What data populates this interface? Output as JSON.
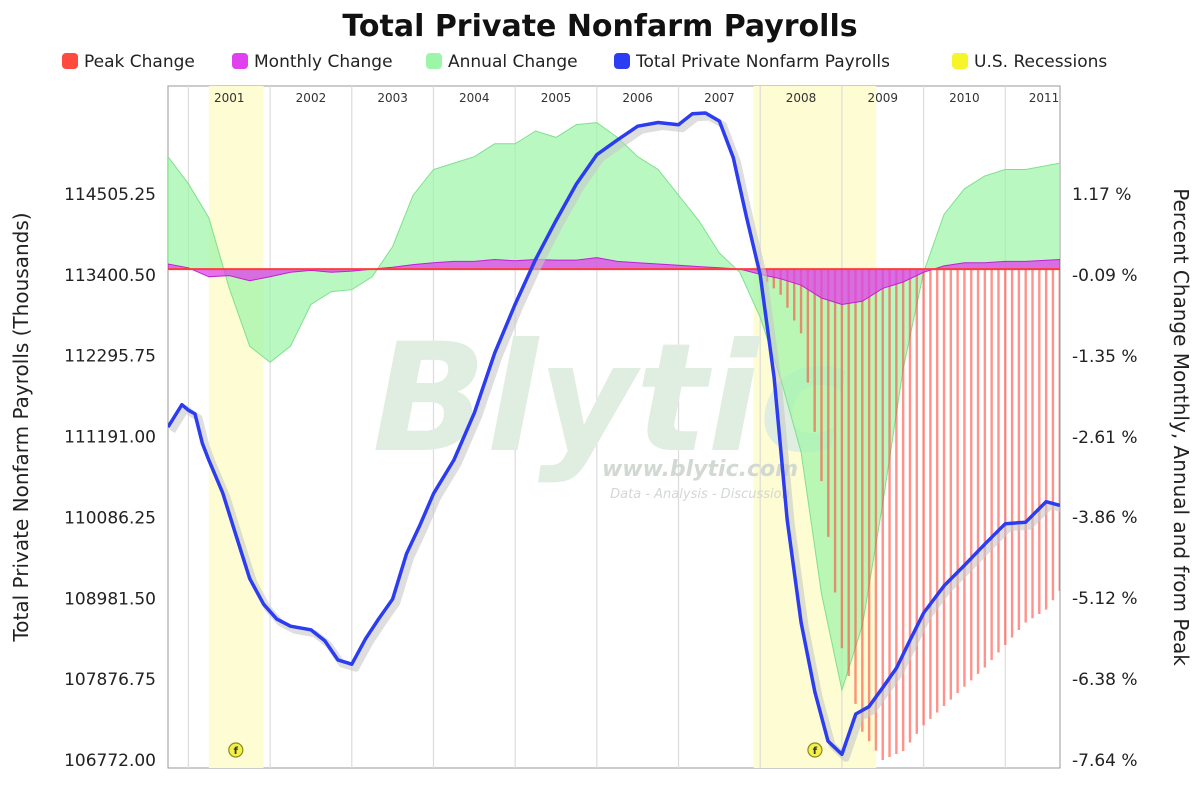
{
  "chart_data": {
    "type": "area",
    "title": "Total Private Nonfarm Payrolls",
    "legend": {
      "placement": "top",
      "entries": [
        {
          "name": "Peak Change",
          "color": "#ff4a3d"
        },
        {
          "name": "Monthly Change",
          "color": "#e040ee"
        },
        {
          "name": "Annual Change",
          "color": "#9cf5a8"
        },
        {
          "name": "Total Private Nonfarm Payrolls",
          "color": "#2c3cf0"
        },
        {
          "name": "U.S. Recessions",
          "color": "#f5f52a"
        }
      ]
    },
    "x_range": [
      2000.75,
      2011.67
    ],
    "year_labels": [
      "2001",
      "2002",
      "2003",
      "2004",
      "2005",
      "2006",
      "2007",
      "2008",
      "2009",
      "2010",
      "2011"
    ],
    "recessions": [
      [
        2001.25,
        2001.92
      ],
      [
        2007.92,
        2009.42
      ]
    ],
    "recession_markers": [
      2001.58,
      2008.67
    ],
    "marker_label": "f",
    "y_left": {
      "label": "Total Private Nonfarm Payrolls (Thousands)",
      "range": [
        106772.0,
        115610.0
      ],
      "ticks": [
        "114505.25",
        "113400.50",
        "112295.75",
        "111191.00",
        "110086.25",
        "108981.50",
        "107876.75",
        "106772.00"
      ],
      "tick_values": [
        114505.25,
        113400.5,
        112295.75,
        111191.0,
        110086.25,
        108981.5,
        107876.75,
        106772.0
      ]
    },
    "y_right": {
      "label": "Percent Change Monthly, Annual and from Peak",
      "range": [
        -7.64,
        2.43
      ],
      "ticks": [
        "1.17 %",
        "-0.09 %",
        "-1.35 %",
        "-2.61 %",
        "-3.86 %",
        "-5.12 %",
        "-6.38 %",
        "-7.64 %"
      ],
      "tick_values": [
        1.17,
        -0.09,
        -1.35,
        -2.61,
        -3.86,
        -5.12,
        -6.38,
        -7.64
      ]
    },
    "series": [
      {
        "name": "Total Private Nonfarm Payrolls",
        "axis": "left",
        "color": "#2c3cf0",
        "x": [
          2000.75,
          2000.92,
          2001.0,
          2001.08,
          2001.17,
          2001.25,
          2001.42,
          2001.58,
          2001.75,
          2001.92,
          2002.08,
          2002.25,
          2002.5,
          2002.67,
          2002.83,
          2003.0,
          2003.17,
          2003.33,
          2003.5,
          2003.67,
          2003.83,
          2004.0,
          2004.25,
          2004.5,
          2004.75,
          2005.0,
          2005.25,
          2005.5,
          2005.75,
          2006.0,
          2006.25,
          2006.5,
          2006.75,
          2007.0,
          2007.17,
          2007.33,
          2007.5,
          2007.67,
          2007.83,
          2008.0,
          2008.17,
          2008.33,
          2008.5,
          2008.67,
          2008.83,
          2009.0,
          2009.17,
          2009.33,
          2009.5,
          2009.67,
          2009.83,
          2010.0,
          2010.25,
          2010.5,
          2010.75,
          2011.0,
          2011.25,
          2011.5,
          2011.67
        ],
        "y": [
          111320,
          111625,
          111550,
          111500,
          111100,
          110870,
          110420,
          109850,
          109250,
          108900,
          108700,
          108600,
          108550,
          108400,
          108140,
          108080,
          108430,
          108700,
          108970,
          109590,
          109970,
          110410,
          110870,
          111510,
          112330,
          113000,
          113610,
          114140,
          114640,
          115040,
          115240,
          115430,
          115480,
          115450,
          115600,
          115610,
          115500,
          115000,
          114200,
          113400,
          112000,
          110050,
          108650,
          107700,
          107030,
          106850,
          107400,
          107500,
          107760,
          108030,
          108400,
          108780,
          109150,
          109430,
          109720,
          110000,
          110020,
          110300,
          110250
        ]
      },
      {
        "name": "Annual Change",
        "axis": "right",
        "color": "#9cf5a8",
        "x": [
          2000.75,
          2001.0,
          2001.25,
          2001.5,
          2001.75,
          2002.0,
          2002.25,
          2002.5,
          2002.75,
          2003.0,
          2003.25,
          2003.5,
          2003.75,
          2004.0,
          2004.25,
          2004.5,
          2004.75,
          2005.0,
          2005.25,
          2005.5,
          2005.75,
          2006.0,
          2006.25,
          2006.5,
          2006.75,
          2007.0,
          2007.25,
          2007.5,
          2007.75,
          2008.0,
          2008.25,
          2008.5,
          2008.75,
          2009.0,
          2009.25,
          2009.5,
          2009.75,
          2010.0,
          2010.25,
          2010.5,
          2010.75,
          2011.0,
          2011.25,
          2011.67
        ],
        "y": [
          1.75,
          1.33,
          0.8,
          -0.3,
          -1.2,
          -1.45,
          -1.2,
          -0.55,
          -0.35,
          -0.32,
          -0.12,
          0.35,
          1.15,
          1.55,
          1.65,
          1.75,
          1.95,
          1.95,
          2.15,
          2.05,
          2.25,
          2.28,
          2.05,
          1.75,
          1.55,
          1.15,
          0.75,
          0.25,
          -0.05,
          -0.75,
          -1.7,
          -2.85,
          -5.05,
          -6.55,
          -5.55,
          -3.65,
          -1.55,
          -0.05,
          0.85,
          1.25,
          1.45,
          1.55,
          1.55,
          1.65
        ]
      },
      {
        "name": "Monthly Change",
        "axis": "right",
        "color": "#e040ee",
        "x": [
          2000.75,
          2001.0,
          2001.25,
          2001.5,
          2001.75,
          2002.0,
          2002.25,
          2002.5,
          2002.75,
          2003.0,
          2003.25,
          2003.5,
          2003.75,
          2004.0,
          2004.25,
          2004.5,
          2004.75,
          2005.0,
          2005.25,
          2005.5,
          2005.75,
          2006.0,
          2006.25,
          2006.5,
          2006.75,
          2007.0,
          2007.25,
          2007.5,
          2007.75,
          2008.0,
          2008.25,
          2008.5,
          2008.75,
          2009.0,
          2009.25,
          2009.5,
          2009.75,
          2010.0,
          2010.25,
          2010.5,
          2010.75,
          2011.0,
          2011.25,
          2011.67
        ],
        "y": [
          0.08,
          0.02,
          -0.12,
          -0.1,
          -0.18,
          -0.12,
          -0.05,
          -0.02,
          -0.05,
          -0.03,
          0.0,
          0.03,
          0.07,
          0.1,
          0.12,
          0.12,
          0.15,
          0.13,
          0.15,
          0.14,
          0.14,
          0.18,
          0.12,
          0.1,
          0.08,
          0.06,
          0.04,
          0.02,
          0.0,
          -0.08,
          -0.15,
          -0.25,
          -0.45,
          -0.55,
          -0.5,
          -0.3,
          -0.2,
          -0.05,
          0.05,
          0.1,
          0.1,
          0.12,
          0.12,
          0.15
        ]
      },
      {
        "name": "Peak Change",
        "axis": "right",
        "color": "#ff4a3d",
        "x": [
          2008.0,
          2008.25,
          2008.5,
          2008.75,
          2009.0,
          2009.25,
          2009.5,
          2009.75,
          2010.0,
          2010.25,
          2010.5,
          2010.75,
          2011.0,
          2011.25,
          2011.5,
          2011.67
        ],
        "y": [
          -0.1,
          -0.4,
          -1.0,
          -3.3,
          -5.9,
          -7.2,
          -7.64,
          -7.5,
          -7.1,
          -6.8,
          -6.5,
          -6.2,
          -5.85,
          -5.5,
          -5.3,
          -5.0
        ]
      }
    ]
  },
  "watermark": {
    "brand": "Blytic",
    "url": "www.blytic.com",
    "tagline": "Data - Analysis - Discussion"
  }
}
